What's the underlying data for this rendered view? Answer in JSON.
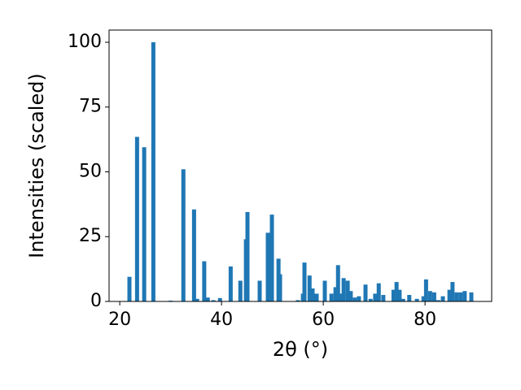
{
  "chart_data": {
    "type": "bar",
    "xlabel": "2θ (°)",
    "ylabel": "Intensities (scaled)",
    "color": "#1f77b4",
    "x": [
      21.9,
      23.4,
      24.8,
      26.6,
      30.0,
      32.5,
      34.6,
      35.2,
      36.6,
      37.3,
      38.4,
      39.7,
      41.8,
      43.7,
      44.8,
      45.1,
      47.5,
      49.1,
      49.9,
      51.2,
      51.5,
      55.0,
      56.0,
      56.3,
      57.3,
      57.9,
      58.7,
      60.3,
      61.6,
      62.4,
      62.9,
      63.5,
      64.0,
      64.8,
      65.4,
      66.2,
      67.0,
      68.3,
      69.3,
      70.2,
      70.9,
      71.8,
      73.8,
      74.4,
      75.0,
      75.7,
      76.9,
      78.4,
      79.7,
      80.2,
      81.0,
      81.8,
      82.6,
      83.5,
      84.8,
      85.4,
      86.2,
      87.0,
      87.8,
      89.1
    ],
    "values": [
      9.5,
      63.5,
      59.5,
      100,
      0.3,
      51,
      35.5,
      1,
      15.5,
      1.5,
      0.5,
      1.3,
      13.5,
      8,
      24,
      34.5,
      8,
      26.5,
      33.5,
      16.5,
      10.5,
      0.5,
      3,
      15,
      10,
      5,
      3,
      8,
      3,
      5.5,
      14,
      3,
      9,
      8,
      4,
      1.5,
      2,
      6.5,
      1,
      3,
      7,
      2.5,
      4.5,
      7.5,
      4.5,
      1,
      2.5,
      1,
      2,
      8.5,
      4,
      3.5,
      0.5,
      2,
      4.5,
      7.5,
      3.5,
      3.5,
      4,
      3.5
    ],
    "xlim": [
      17.9,
      93.1
    ],
    "xticks": [
      20,
      40,
      60,
      80
    ],
    "ylim": [
      0,
      104.7
    ],
    "yticks": [
      0,
      25,
      50,
      75,
      100
    ],
    "grid": false
  }
}
